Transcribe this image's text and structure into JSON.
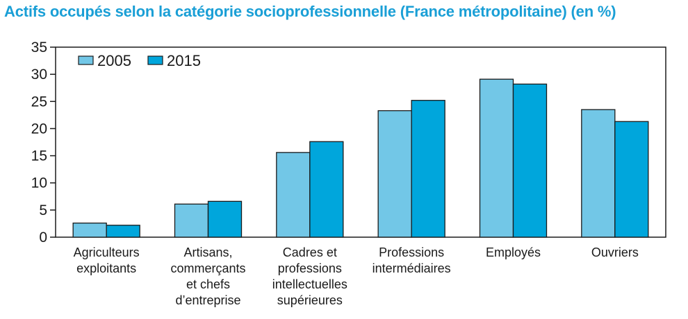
{
  "chart_data": {
    "type": "bar",
    "title": "Actifs occupés selon la catégorie socioprofessionnelle (France métropolitaine) (en %)",
    "xlabel": "",
    "ylabel": "",
    "ylim": [
      0,
      35
    ],
    "yticks": [
      0,
      5,
      10,
      15,
      20,
      25,
      30,
      35
    ],
    "grid": false,
    "legend_position": "top-left",
    "categories": [
      [
        "Agriculteurs",
        "exploitants"
      ],
      [
        "Artisans,",
        "commerçants",
        "et chefs",
        "d’entreprise"
      ],
      [
        "Cadres et",
        "professions",
        "intellectuelles",
        "supérieures"
      ],
      [
        "Professions",
        "intermédiaires"
      ],
      [
        "Employés"
      ],
      [
        "Ouvriers"
      ]
    ],
    "series": [
      {
        "name": "2005",
        "color": "#72c7e7",
        "values": [
          2.6,
          6.1,
          15.6,
          23.3,
          29.1,
          23.5
        ]
      },
      {
        "name": "2015",
        "color": "#00a6dc",
        "values": [
          2.2,
          6.6,
          17.6,
          25.2,
          28.2,
          21.3
        ]
      }
    ]
  }
}
